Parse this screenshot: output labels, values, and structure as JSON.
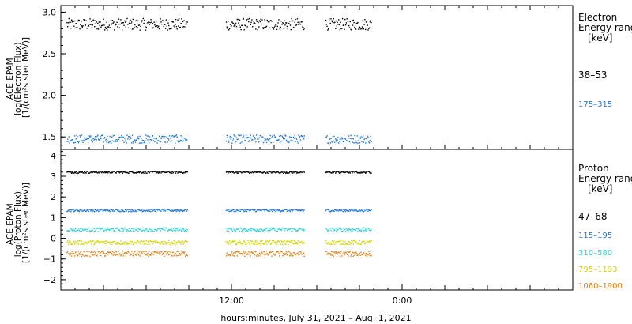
{
  "chart_data": [
    {
      "type": "scatter",
      "title": "",
      "ylabel_lines": [
        "ACE EPAM",
        "log(Electron Flux)",
        "[1/(cm²s ster MeV)]"
      ],
      "ylim": [
        1.35,
        3.08
      ],
      "yticks": [
        1.5,
        2.0,
        2.5,
        3.0
      ],
      "ytick_labels": [
        "1.5",
        "2.0",
        "2.5",
        "3.0"
      ],
      "legend_title_lines": [
        "Electron",
        "Energy range",
        "[keV]"
      ],
      "series": [
        {
          "name": "38–53",
          "color": "#000000",
          "level": 2.86,
          "noise": 0.07
        },
        {
          "name": "175–315",
          "color": "#1f77d8",
          "level": 1.48,
          "noise": 0.05
        }
      ]
    },
    {
      "type": "scatter",
      "title": "",
      "ylabel_lines": [
        "ACE EPAM",
        "log(Proton Flux)",
        "[1/(cm²s ster MeV)]"
      ],
      "ylim": [
        -2.5,
        4.3
      ],
      "yticks": [
        -2,
        -1,
        0,
        1,
        2,
        3,
        4
      ],
      "ytick_labels": [
        "−2",
        "−1",
        "0",
        "1",
        "2",
        "3",
        "4"
      ],
      "legend_title_lines": [
        "Proton",
        "Energy range",
        "[keV]"
      ],
      "series": [
        {
          "name": "47–68",
          "color": "#000000",
          "level": 3.22,
          "noise": 0.05
        },
        {
          "name": "115–195",
          "color": "#1f77d8",
          "level": 1.38,
          "noise": 0.06
        },
        {
          "name": "310–580",
          "color": "#2ed3d3",
          "level": 0.45,
          "noise": 0.09
        },
        {
          "name": "795–1193",
          "color": "#d6d600",
          "level": -0.18,
          "noise": 0.1
        },
        {
          "name": "1060–1900",
          "color": "#e07f10",
          "level": -0.72,
          "noise": 0.13
        }
      ]
    }
  ],
  "x_axis": {
    "label": "hours:minutes, July 31, 2021 – Aug. 1, 2021",
    "start_hour": 0,
    "end_hour": 36,
    "tick_labels": [
      {
        "hour": 12,
        "label": "12:00"
      },
      {
        "hour": 24,
        "label": "0:00"
      }
    ],
    "data_segments": [
      [
        0.4,
        8.9
      ],
      [
        11.6,
        17.1
      ],
      [
        18.6,
        21.8
      ]
    ]
  }
}
